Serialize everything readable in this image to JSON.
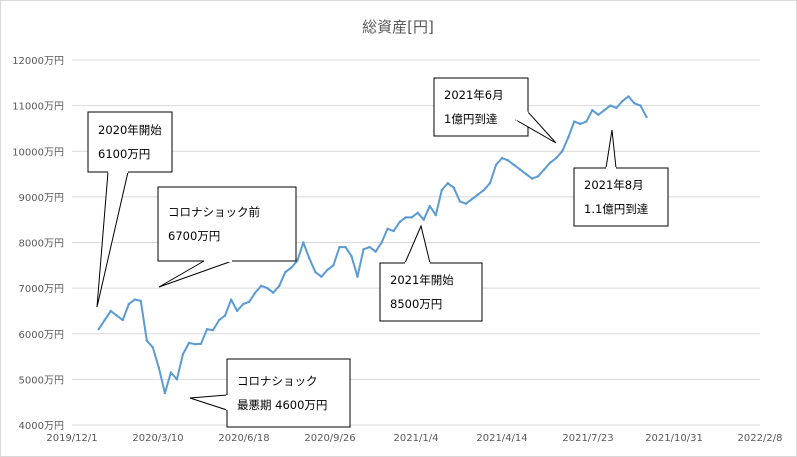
{
  "chart_data": {
    "type": "line",
    "title": "総資産[円]",
    "xlabel": "",
    "ylabel": "",
    "ylim": [
      4000,
      12000
    ],
    "xlim": [
      "2019-12-01",
      "2022-02-08"
    ],
    "y_ticks": [
      4000,
      5000,
      6000,
      7000,
      8000,
      9000,
      10000,
      11000,
      12000
    ],
    "y_tick_labels": [
      "4000万円",
      "5000万円",
      "6000万円",
      "7000万円",
      "8000万円",
      "9000万円",
      "10000万円",
      "11000万円",
      "12000万円"
    ],
    "x_ticks": [
      "2019-12-01",
      "2020-03-10",
      "2020-06-18",
      "2020-09-26",
      "2021-01-04",
      "2021-04-14",
      "2021-07-23",
      "2021-10-31",
      "2022-02-08"
    ],
    "x_tick_labels": [
      "2019/12/1",
      "2020/3/10",
      "2020/6/18",
      "2020/9/26",
      "2021/1/4",
      "2021/4/14",
      "2021/7/23",
      "2021/10/31",
      "2022/2/8"
    ],
    "grid": true,
    "line_color": "#5b9bd5",
    "series": [
      {
        "x": [
          "2020-01-01",
          "2020-01-08",
          "2020-01-15",
          "2020-01-22",
          "2020-01-29",
          "2020-02-05",
          "2020-02-12",
          "2020-02-19",
          "2020-02-26",
          "2020-03-04",
          "2020-03-11",
          "2020-03-18",
          "2020-03-25",
          "2020-04-01",
          "2020-04-08",
          "2020-04-15",
          "2020-04-22",
          "2020-04-29",
          "2020-05-06",
          "2020-05-13",
          "2020-05-20",
          "2020-05-27",
          "2020-06-03",
          "2020-06-10",
          "2020-06-17",
          "2020-06-24",
          "2020-07-01",
          "2020-07-08",
          "2020-07-15",
          "2020-07-22",
          "2020-07-29",
          "2020-08-05",
          "2020-08-12",
          "2020-08-19",
          "2020-08-26",
          "2020-09-02",
          "2020-09-09",
          "2020-09-16",
          "2020-09-23",
          "2020-09-30",
          "2020-10-07",
          "2020-10-14",
          "2020-10-21",
          "2020-10-28",
          "2020-11-04",
          "2020-11-11",
          "2020-11-18",
          "2020-11-25",
          "2020-12-02",
          "2020-12-09",
          "2020-12-16",
          "2020-12-23",
          "2020-12-30",
          "2021-01-06",
          "2021-01-13",
          "2021-01-20",
          "2021-01-27",
          "2021-02-03",
          "2021-02-10",
          "2021-02-17",
          "2021-02-24",
          "2021-03-03",
          "2021-03-10",
          "2021-03-17",
          "2021-03-24",
          "2021-03-31",
          "2021-04-07",
          "2021-04-14",
          "2021-04-21",
          "2021-04-28",
          "2021-05-05",
          "2021-05-12",
          "2021-05-19",
          "2021-05-26",
          "2021-06-02",
          "2021-06-09",
          "2021-06-16",
          "2021-06-23",
          "2021-06-30",
          "2021-07-07",
          "2021-07-14",
          "2021-07-21",
          "2021-07-28",
          "2021-08-04",
          "2021-08-11",
          "2021-08-18",
          "2021-08-25",
          "2021-09-01",
          "2021-09-08",
          "2021-09-15",
          "2021-09-22",
          "2021-09-29"
        ],
        "values": [
          6100,
          6300,
          6500,
          6400,
          6300,
          6650,
          6750,
          6720,
          5850,
          5700,
          5250,
          4700,
          5150,
          5000,
          5550,
          5800,
          5770,
          5780,
          6100,
          6080,
          6300,
          6400,
          6750,
          6500,
          6650,
          6700,
          6900,
          7050,
          7000,
          6900,
          7050,
          7350,
          7450,
          7600,
          8000,
          7650,
          7350,
          7250,
          7400,
          7500,
          7900,
          7900,
          7700,
          7250,
          7850,
          7900,
          7800,
          8000,
          8300,
          8250,
          8450,
          8550,
          8550,
          8650,
          8500,
          8800,
          8600,
          9150,
          9300,
          9200,
          8900,
          8850,
          8950,
          9050,
          9150,
          9300,
          9700,
          9850,
          9800,
          9700,
          9600,
          9500,
          9400,
          9450,
          9600,
          9750,
          9850,
          10000,
          10300,
          10650,
          10600,
          10650,
          10900,
          10800,
          10900,
          11000,
          10950,
          11100,
          11200,
          11050,
          11000,
          10750
        ]
      }
    ],
    "annotations": [
      {
        "lines": [
          "2020年開始",
          "6100万円"
        ]
      },
      {
        "lines": [
          "コロナショック前",
          "6700万円"
        ]
      },
      {
        "lines": [
          "コロナショック",
          "最悪期 4600万円"
        ]
      },
      {
        "lines": [
          "2021年開始",
          "8500万円"
        ]
      },
      {
        "lines": [
          "2021年6月",
          "1億円到達"
        ]
      },
      {
        "lines": [
          "2021年8月",
          "1.1億円到達"
        ]
      }
    ]
  }
}
